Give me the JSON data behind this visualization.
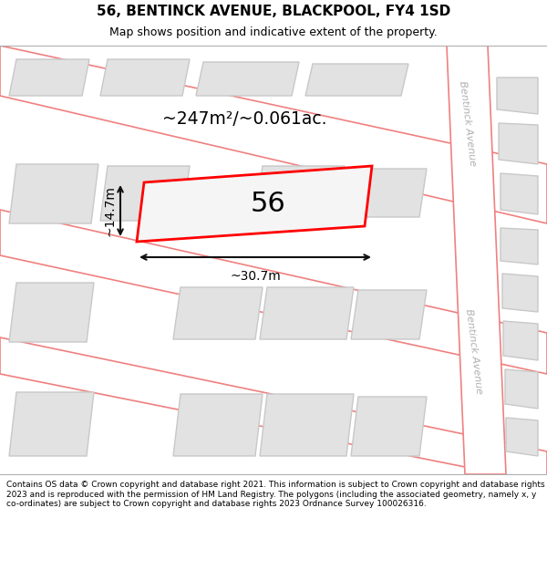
{
  "title": "56, BENTINCK AVENUE, BLACKPOOL, FY4 1SD",
  "subtitle": "Map shows position and indicative extent of the property.",
  "footer": "Contains OS data © Crown copyright and database right 2021. This information is subject to Crown copyright and database rights 2023 and is reproduced with the permission of HM Land Registry. The polygons (including the associated geometry, namely x, y co-ordinates) are subject to Crown copyright and database rights 2023 Ordnance Survey 100026316.",
  "area_label": "~247m²/~0.061ac.",
  "width_label": "~30.7m",
  "height_label": "~14.7m",
  "property_number": "56",
  "map_bg": "#efefef",
  "road_fill": "#ffffff",
  "road_outline_color": "#f08080",
  "building_color": "#e2e2e2",
  "building_outline_color": "#c8c8c8",
  "property_fill": "#f5f5f5",
  "property_outline_color": "#ff0000",
  "street_label_color": "#aaaaaa",
  "dim_color": "#111111",
  "title_fontsize": 11,
  "subtitle_fontsize": 9,
  "footer_fontsize": 6.5
}
